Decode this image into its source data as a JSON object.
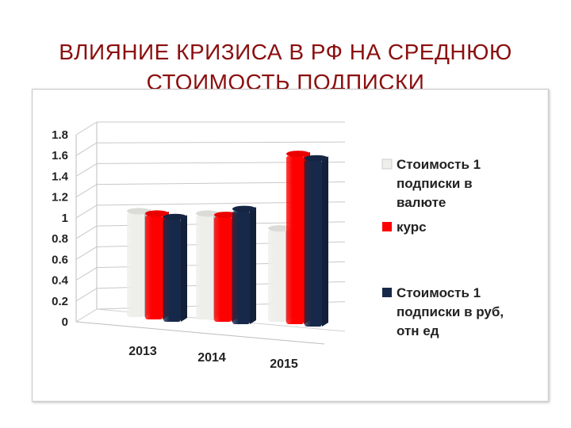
{
  "slide": {
    "title_line1": "ВЛИЯНИЕ КРИЗИСА В РФ НА СРЕДНЮЮ",
    "title_line2": "СТОИМОСТЬ ПОДПИСКИ"
  },
  "chart_data": {
    "type": "bar",
    "style": "3d-clustered-column",
    "categories": [
      "2013",
      "2014",
      "2015"
    ],
    "series": [
      {
        "name": "Стоимость 1 подписки в валюте",
        "legend_lines": [
          "Стоимость 1",
          "подписки в",
          "валюте"
        ],
        "color": "#eeeeea",
        "values": [
          1.0,
          1.0,
          0.88
        ]
      },
      {
        "name": "курс",
        "legend_lines": [
          "курс"
        ],
        "color": "#ff0000",
        "values": [
          1.0,
          1.01,
          1.62
        ]
      },
      {
        "name": "Стоимость 1 подписки в руб, отн ед",
        "legend_lines": [
          "Стоимость 1",
          "подписки в руб,",
          "отн ед"
        ],
        "color": "#17294a",
        "values": [
          0.99,
          1.09,
          1.6
        ]
      }
    ],
    "yticks": [
      "0",
      "0.2",
      "0.4",
      "0.6",
      "0.8",
      "1",
      "1.2",
      "1.4",
      "1.6",
      "1.8"
    ],
    "ylim": [
      0,
      1.8
    ],
    "grid": true,
    "legend_position": "right"
  }
}
